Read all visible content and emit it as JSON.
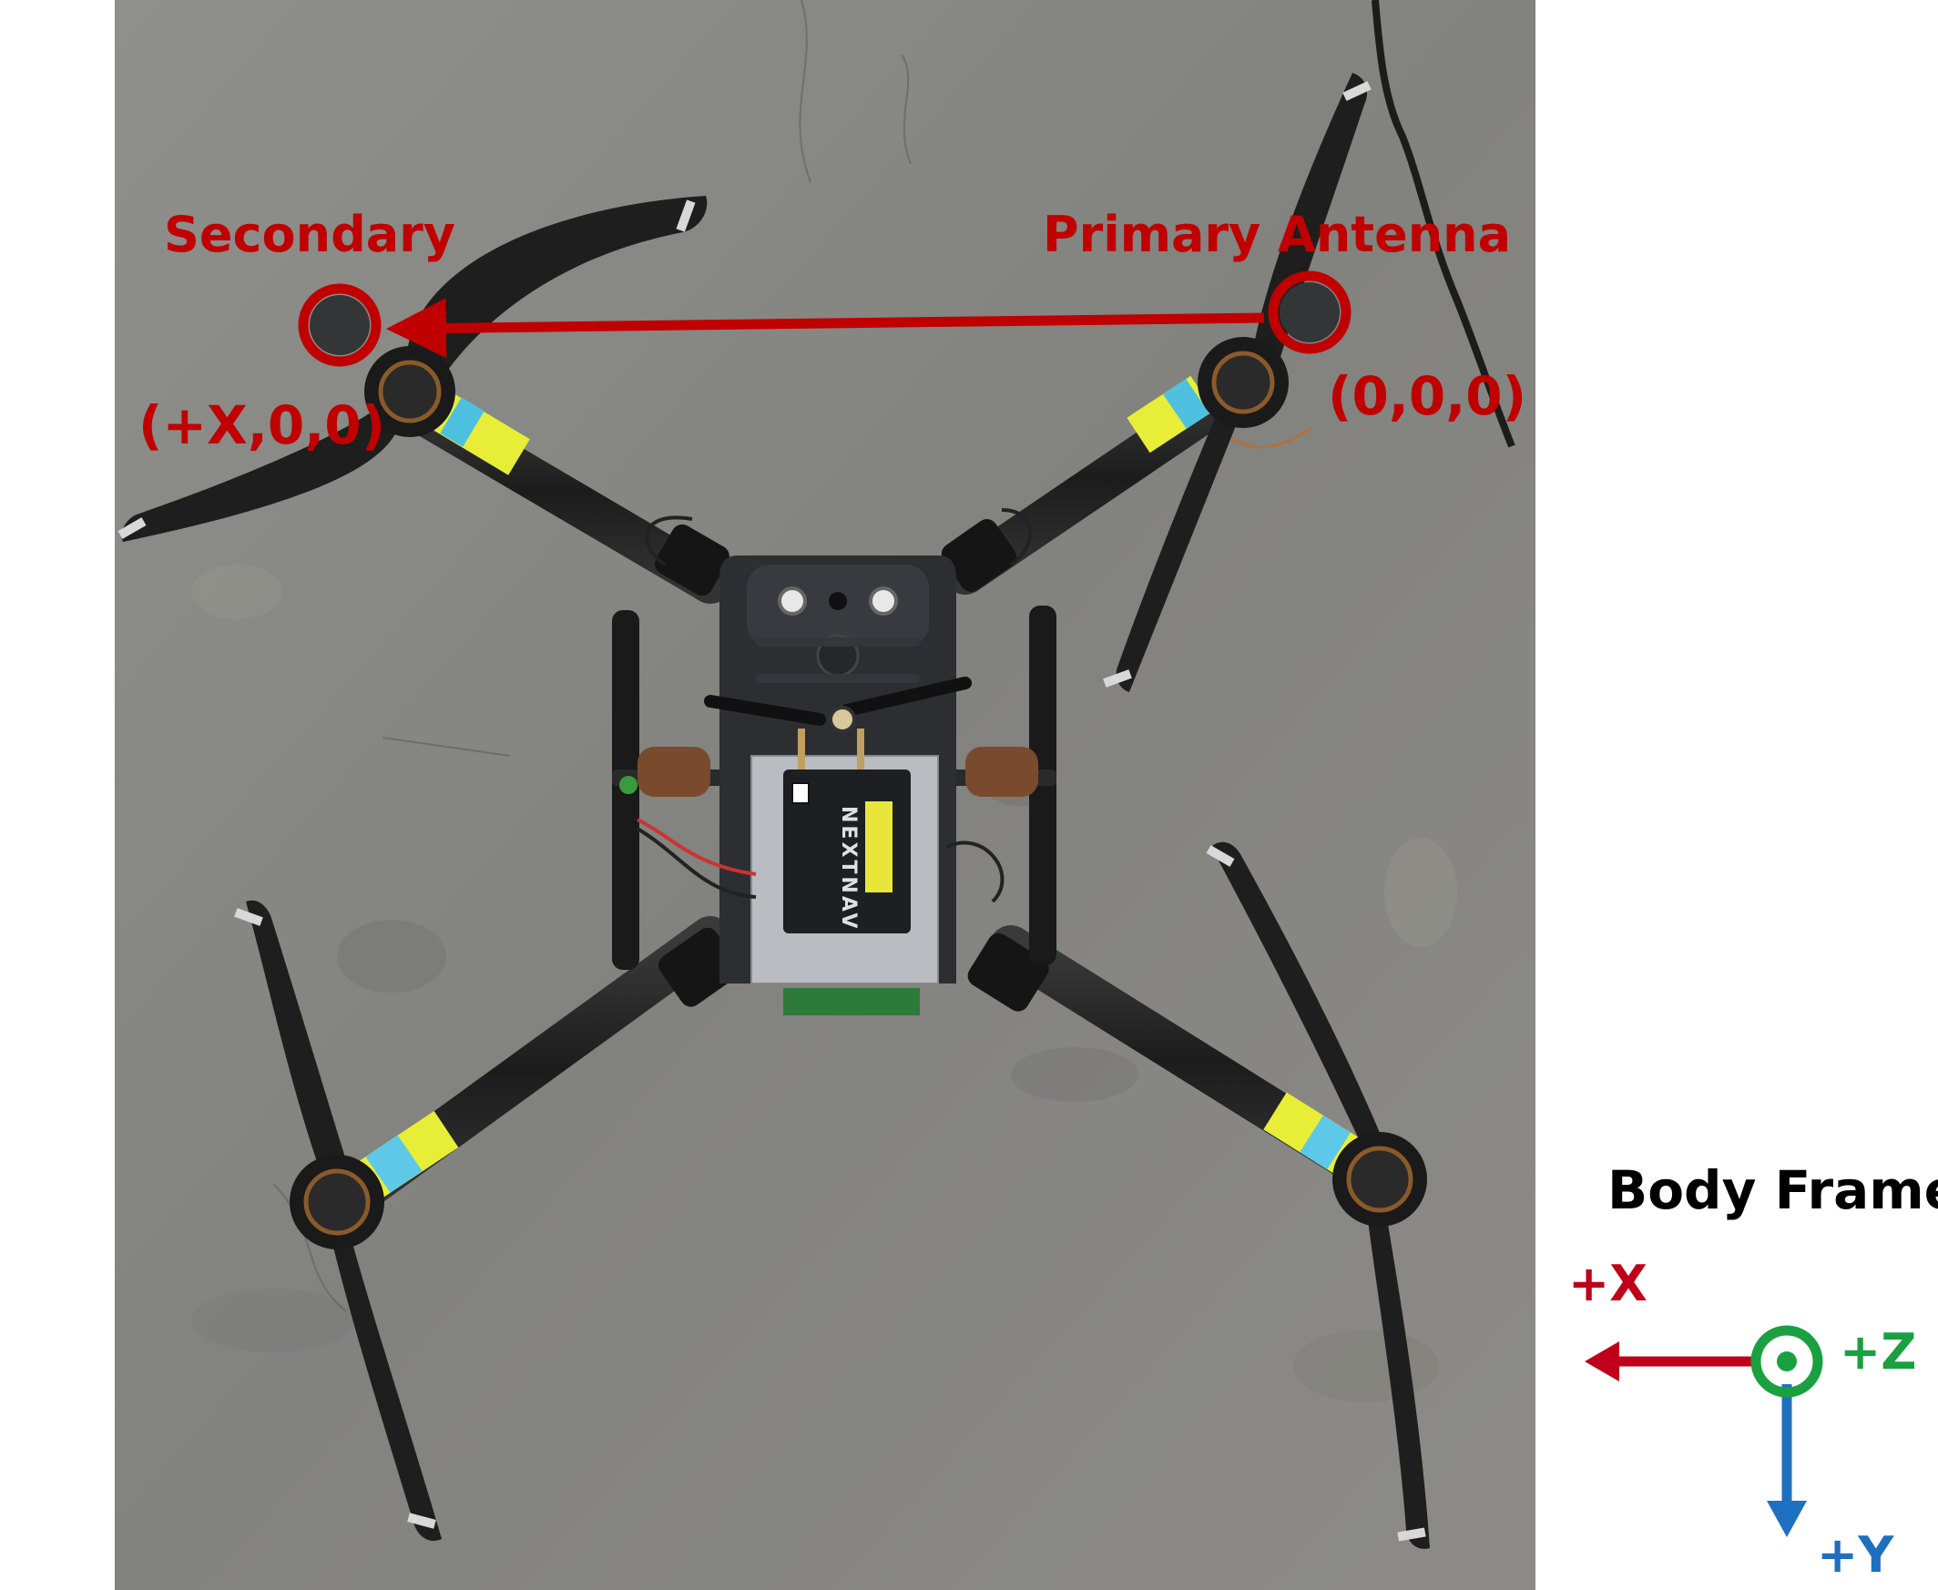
{
  "annotations": {
    "secondary_label": "Secondary",
    "primary_label": "Primary Antenna",
    "secondary_coord": "(+X,0,0)",
    "primary_coord": "(0,0,0)"
  },
  "body_frame": {
    "title": "Body Frame",
    "x_label": "+X",
    "y_label": "+Y",
    "z_label": "+Z"
  },
  "receiver_brand": "NEXTNAV",
  "colors": {
    "annotation_red": "#c00000",
    "axis_x": "#c0001a",
    "axis_y": "#1f6fc0",
    "axis_z": "#1aa040",
    "floor": "#8a8a86",
    "carbon": "#2a2a2a",
    "tape_yellow": "#e8ee38",
    "tape_blue": "#5ec8e8"
  }
}
